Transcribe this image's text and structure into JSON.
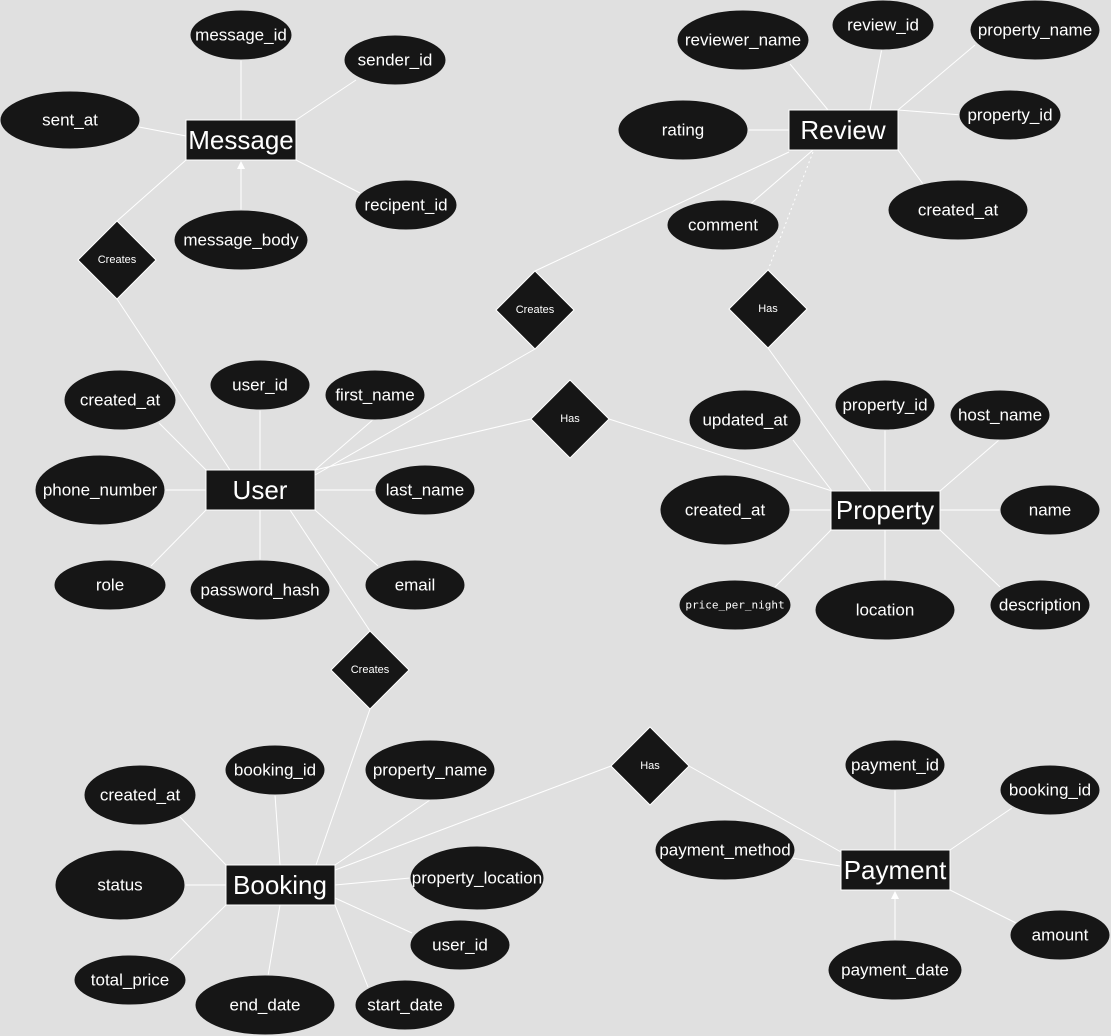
{
  "entities": {
    "message": "Message",
    "review": "Review",
    "user": "User",
    "property": "Property",
    "booking": "Booking",
    "payment": "Payment"
  },
  "relationships": {
    "user_creates_message": "Creates",
    "user_creates_review": "Creates",
    "property_has_review": "Has",
    "user_has_property": "Has",
    "user_creates_booking": "Creates",
    "booking_has_payment": "Has"
  },
  "attributes": {
    "message": [
      "message_id",
      "sender_id",
      "sent_at",
      "recipent_id",
      "message_body"
    ],
    "review": [
      "reviewer_name",
      "review_id",
      "property_name",
      "rating",
      "property_id",
      "comment",
      "created_at"
    ],
    "user": [
      "created_at",
      "user_id",
      "first_name",
      "phone_number",
      "last_name",
      "role",
      "password_hash",
      "email"
    ],
    "property": [
      "updated_at",
      "property_id",
      "host_name",
      "created_at",
      "name",
      "price_per_night",
      "location",
      "description"
    ],
    "booking": [
      "created_at",
      "booking_id",
      "property_name",
      "status",
      "property_location",
      "user_id",
      "total_price",
      "end_date",
      "start_date"
    ],
    "payment": [
      "payment_id",
      "booking_id",
      "payment_method",
      "amount",
      "payment_date"
    ]
  },
  "colors": {
    "background": "#e0e0e0",
    "shape_fill": "#161616",
    "line": "#ffffff",
    "text": "#ffffff"
  }
}
